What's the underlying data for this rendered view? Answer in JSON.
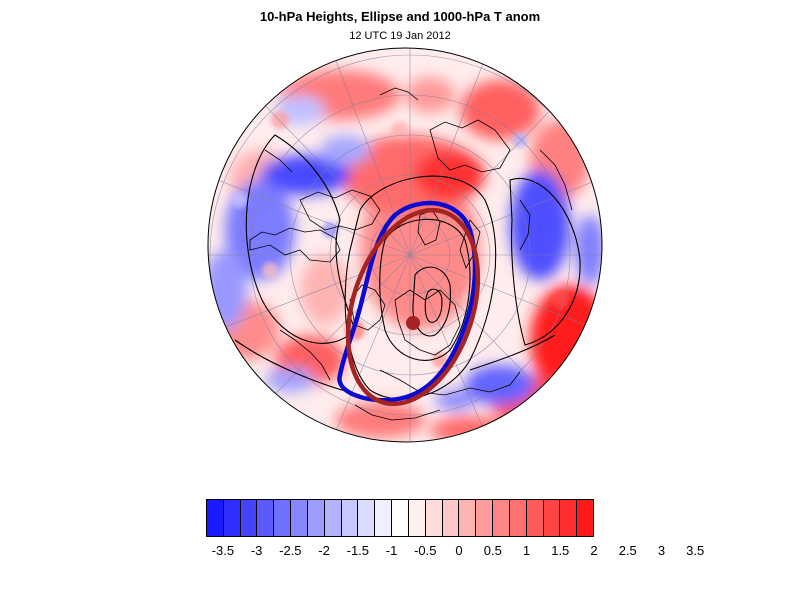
{
  "map": {
    "title": "10-hPa Heights, Ellipse and 1000-hPa T anom",
    "subtitle": "12 UTC 19 Jan 2012",
    "projection": "orthographic-north-polar",
    "colors": {
      "ellipse_fit": "#0a0ad2",
      "ellipse_reference": "#a52323",
      "center_marker": "#a52323",
      "contour": "#000000",
      "coastline": "#000000",
      "graticule": "#7f7f9f"
    }
  },
  "colorbar": {
    "colors": [
      "#1a1aff",
      "#2e2eff",
      "#4444ff",
      "#5a5aff",
      "#7070ff",
      "#8686ff",
      "#9c9cff",
      "#b2b2ff",
      "#c8c8ff",
      "#dcdcff",
      "#efefff",
      "#ffffff",
      "#ffefef",
      "#ffdcdc",
      "#ffc8c8",
      "#ffb2b2",
      "#ff9c9c",
      "#ff8686",
      "#ff7070",
      "#ff5a5a",
      "#ff4444",
      "#ff2e2e",
      "#ff1a1a"
    ],
    "labels": [
      "-3.5",
      "-3",
      "-2.5",
      "-2",
      "-1.5",
      "-1",
      "-0.5",
      "0",
      "0.5",
      "1",
      "1.5",
      "2",
      "2.5",
      "3",
      "3.5"
    ]
  }
}
